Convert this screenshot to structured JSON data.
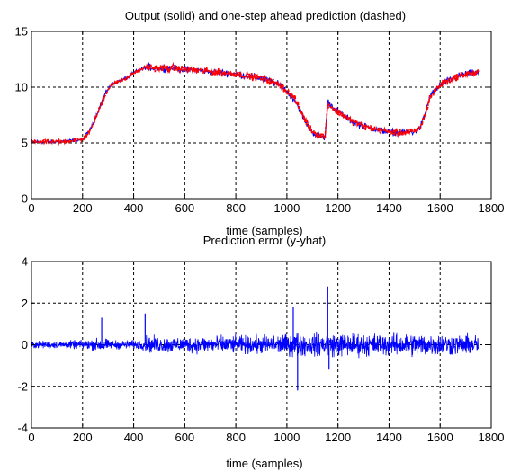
{
  "chart_data": [
    {
      "type": "line",
      "title": "Output (solid) and one-step ahead prediction (dashed)",
      "xlabel": "time (samples)",
      "ylabel": "",
      "xlim": [
        0,
        1800
      ],
      "ylim": [
        0,
        15
      ],
      "xticks": [
        0,
        200,
        400,
        600,
        800,
        1000,
        1200,
        1400,
        1600,
        1800
      ],
      "yticks": [
        0,
        5,
        10,
        15
      ],
      "grid": true,
      "series": [
        {
          "style": "solid",
          "color": "#0000ff",
          "x": [
            0,
            50,
            100,
            150,
            200,
            230,
            260,
            280,
            300,
            320,
            350,
            380,
            400,
            420,
            450,
            500,
            550,
            600,
            650,
            700,
            750,
            800,
            850,
            900,
            950,
            980,
            1000,
            1030,
            1050,
            1070,
            1090,
            1110,
            1130,
            1150,
            1160,
            1200,
            1250,
            1300,
            1350,
            1400,
            1450,
            1500,
            1520,
            1540,
            1560,
            1600,
            1650,
            1700,
            1750
          ],
          "y": [
            5.1,
            5.1,
            5.1,
            5.2,
            5.3,
            6.2,
            7.8,
            9.0,
            9.9,
            10.3,
            10.6,
            10.9,
            11.3,
            11.5,
            11.8,
            11.7,
            11.7,
            11.6,
            11.5,
            11.4,
            11.3,
            11.2,
            11.0,
            10.8,
            10.4,
            10.1,
            9.6,
            8.9,
            8.0,
            7.0,
            6.2,
            5.8,
            5.6,
            5.5,
            8.7,
            7.8,
            7.0,
            6.5,
            6.2,
            6.0,
            5.9,
            6.0,
            6.3,
            7.5,
            9.2,
            10.2,
            10.8,
            11.2,
            11.3
          ]
        },
        {
          "style": "dashed",
          "color": "#ff0000",
          "x": [
            0,
            50,
            100,
            150,
            200,
            230,
            260,
            280,
            300,
            320,
            350,
            380,
            400,
            420,
            450,
            500,
            550,
            600,
            650,
            700,
            750,
            800,
            850,
            900,
            950,
            980,
            1000,
            1030,
            1050,
            1070,
            1090,
            1110,
            1130,
            1150,
            1160,
            1200,
            1250,
            1300,
            1350,
            1400,
            1450,
            1500,
            1520,
            1540,
            1560,
            1600,
            1650,
            1700,
            1750
          ],
          "y": [
            5.1,
            5.1,
            5.1,
            5.2,
            5.3,
            6.1,
            7.7,
            8.9,
            9.8,
            10.3,
            10.6,
            10.9,
            11.3,
            11.5,
            11.8,
            11.7,
            11.7,
            11.6,
            11.5,
            11.4,
            11.3,
            11.2,
            11.0,
            10.8,
            10.4,
            10.1,
            9.6,
            9.0,
            8.1,
            7.1,
            6.3,
            5.9,
            5.7,
            5.6,
            8.5,
            7.8,
            7.0,
            6.5,
            6.2,
            6.0,
            5.9,
            6.0,
            6.3,
            7.4,
            9.1,
            10.2,
            10.8,
            11.2,
            11.3
          ]
        }
      ]
    },
    {
      "type": "line",
      "title": "Prediction error (y-yhat)",
      "xlabel": "time (samples)",
      "ylabel": "",
      "xlim": [
        0,
        1800
      ],
      "ylim": [
        -4,
        4
      ],
      "xticks": [
        0,
        200,
        400,
        600,
        800,
        1000,
        1200,
        1400,
        1600,
        1800
      ],
      "yticks": [
        -4,
        -2,
        0,
        2,
        4
      ],
      "grid": true,
      "series": [
        {
          "color": "#0000ff",
          "x": [
            0,
            100,
            200,
            250,
            270,
            280,
            300,
            350,
            400,
            440,
            450,
            500,
            600,
            700,
            800,
            900,
            1000,
            1030,
            1040,
            1050,
            1100,
            1150,
            1160,
            1170,
            1200,
            1300,
            1400,
            1500,
            1600,
            1700,
            1750
          ],
          "amplitude": [
            0.25,
            0.25,
            0.3,
            0.4,
            0.5,
            0.6,
            0.3,
            0.3,
            0.3,
            0.35,
            0.6,
            0.55,
            0.55,
            0.6,
            0.6,
            0.65,
            0.7,
            0.8,
            0.9,
            0.8,
            0.75,
            0.8,
            0.9,
            0.8,
            0.8,
            0.8,
            0.75,
            0.8,
            0.75,
            0.7,
            0.7
          ],
          "spikes": [
            {
              "x": 275,
              "y": 1.3
            },
            {
              "x": 445,
              "y": 1.5
            },
            {
              "x": 1025,
              "y": 1.8
            },
            {
              "x": 1042,
              "y": -2.2
            },
            {
              "x": 1160,
              "y": 2.8
            },
            {
              "x": 1165,
              "y": -1.2
            }
          ]
        }
      ]
    }
  ]
}
